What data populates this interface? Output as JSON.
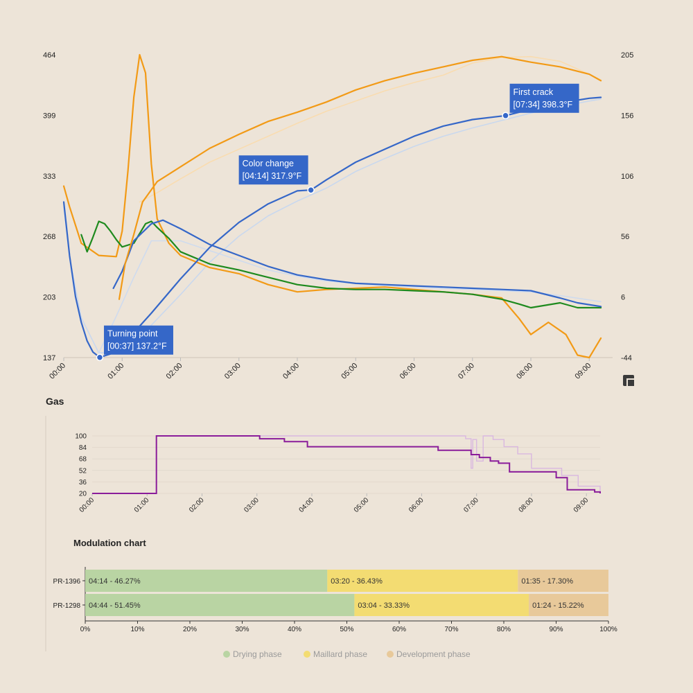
{
  "chart_data": [
    {
      "type": "line",
      "title": "",
      "x_ticks": [
        "00:00",
        "01:00",
        "02:00",
        "03:00",
        "04:00",
        "05:00",
        "06:00",
        "07:00",
        "08:00",
        "09:00"
      ],
      "xlim": [
        0,
        9.4
      ],
      "y_left_ticks": [
        "464",
        "399",
        "333",
        "268",
        "203",
        "137"
      ],
      "ylim_left": [
        137,
        464
      ],
      "y_right_ticks": [
        "205",
        "156",
        "106",
        "56",
        "6",
        "-44"
      ],
      "ylim_right": [
        -44,
        205
      ],
      "colors": {
        "bean_temp": "#3567c8",
        "bean_temp_ref": "#c9d8ee",
        "ror": "#3567c8",
        "ror_ref": "#cfdbee",
        "env_temp": "#f29a16",
        "env_temp_ref": "#f9dcb0",
        "ror_env": "#f29a16",
        "ror_env_ref": "#f7dcb6",
        "ror_green": "#1e8a1e",
        "ror_green_ref": "#cde6c8"
      },
      "series": [
        {
          "key": "bean_temp",
          "axis": "left",
          "x": [
            0,
            0.1,
            0.2,
            0.3,
            0.4,
            0.5,
            0.617,
            0.8,
            1.0,
            1.5,
            2.0,
            2.5,
            3.0,
            3.5,
            4.0,
            4.233,
            4.5,
            5.0,
            5.5,
            6.0,
            6.5,
            7.0,
            7.567,
            8.0,
            8.5,
            9.0,
            9.2
          ],
          "y": [
            305,
            247,
            203,
            175,
            155,
            143,
            137.2,
            141,
            150,
            185,
            222,
            256,
            283,
            303,
            317,
            317.9,
            329,
            348,
            362,
            376,
            387,
            394,
            398.3,
            405,
            412,
            417,
            418
          ]
        },
        {
          "key": "bean_temp_ref",
          "axis": "left",
          "x": [
            0,
            0.1,
            0.3,
            0.6,
            1.0,
            1.5,
            2.0,
            2.5,
            3.0,
            3.5,
            4.0,
            4.5,
            5.0,
            5.5,
            6.0,
            6.5,
            7.0,
            7.5,
            8.0,
            8.5,
            9.0,
            9.2
          ],
          "y": [
            300,
            245,
            180,
            142,
            144,
            172,
            205,
            240,
            268,
            290,
            306,
            320,
            338,
            352,
            365,
            376,
            385,
            393,
            401,
            408,
            414,
            416
          ]
        },
        {
          "key": "env_temp",
          "axis": "left",
          "x": [
            0.95,
            1.05,
            1.2,
            1.35,
            1.6,
            2.0,
            2.5,
            3.0,
            3.5,
            4.0,
            4.5,
            5.0,
            5.5,
            6.0,
            6.5,
            7.0,
            7.5,
            8.0,
            8.5,
            9.0,
            9.2
          ],
          "y": [
            200,
            238,
            270,
            305,
            327,
            343,
            363,
            378,
            392,
            402,
            413,
            426,
            436,
            444,
            451,
            458,
            462,
            456,
            451,
            443,
            436
          ]
        },
        {
          "key": "env_temp_ref",
          "axis": "left",
          "x": [
            1.3,
            1.6,
            2.0,
            2.5,
            3.0,
            3.5,
            4.0,
            4.5,
            5.0,
            5.5,
            6.0,
            6.5,
            7.0,
            7.5,
            8.0,
            8.5,
            9.0,
            9.2
          ],
          "y": [
            305,
            315,
            330,
            348,
            362,
            376,
            390,
            403,
            414,
            425,
            434,
            442,
            455,
            461,
            462,
            457,
            443,
            437
          ]
        },
        {
          "key": "ror",
          "axis": "right",
          "x": [
            0.85,
            1.0,
            1.2,
            1.5,
            1.7,
            2.0,
            2.5,
            3.0,
            3.5,
            4.0,
            4.5,
            5.0,
            5.5,
            6.0,
            6.5,
            7.0,
            7.5,
            8.0,
            8.5,
            8.8,
            9.2
          ],
          "y": [
            13,
            27,
            52,
            66,
            69,
            62,
            49,
            40,
            31,
            24,
            20,
            17,
            16,
            15,
            14,
            13,
            12,
            11,
            5,
            1,
            -2
          ]
        },
        {
          "key": "ror_ref",
          "axis": "right",
          "x": [
            0.6,
            0.9,
            1.2,
            1.5,
            2.0,
            2.5,
            3.0,
            3.5,
            4.0,
            4.5,
            5.0,
            5.5,
            6.0,
            6.5,
            7.0,
            7.5,
            8.0,
            8.5,
            9.2
          ],
          "y": [
            -40,
            -10,
            22,
            52,
            52,
            44,
            36,
            28,
            23,
            19,
            17,
            15,
            14,
            13,
            12,
            11,
            10,
            7,
            2
          ]
        },
        {
          "key": "ror_env",
          "axis": "right",
          "x": [
            0,
            0.1,
            0.3,
            0.6,
            0.9,
            1.0,
            1.1,
            1.2,
            1.3,
            1.4,
            1.5,
            1.6,
            1.8,
            2.0,
            2.5,
            3.0,
            3.5,
            4.0,
            4.5,
            5.0,
            5.5,
            6.0,
            6.5,
            7.0,
            7.5,
            7.8,
            8.0,
            8.3,
            8.6,
            8.8,
            9.0,
            9.2
          ],
          "y": [
            97,
            80,
            50,
            40,
            39,
            60,
            110,
            170,
            205,
            190,
            115,
            70,
            50,
            40,
            30,
            25,
            16,
            10,
            12,
            13,
            14,
            12,
            10,
            8,
            5,
            -12,
            -25,
            -15,
            -25,
            -42,
            -44,
            -28
          ]
        },
        {
          "key": "ror_green",
          "axis": "right",
          "x": [
            0.3,
            0.4,
            0.5,
            0.6,
            0.7,
            0.8,
            0.9,
            1.0,
            1.2,
            1.4,
            1.5,
            1.6,
            1.8,
            2.0,
            2.5,
            3.0,
            3.5,
            4.0,
            4.5,
            5.0,
            5.5,
            6.0,
            6.5,
            7.0,
            7.5,
            7.8,
            8.0,
            8.5,
            8.8,
            9.2
          ],
          "y": [
            57,
            43,
            55,
            68,
            66,
            60,
            53,
            47,
            50,
            66,
            68,
            63,
            54,
            43,
            33,
            28,
            22,
            16,
            13,
            12,
            12,
            11,
            10,
            8,
            4,
            0,
            -3,
            1,
            -3,
            -3
          ]
        }
      ],
      "annotations": [
        {
          "label": "Turning point",
          "value": "[00:37] 137.2°F",
          "x": 0.617,
          "y": 137.2,
          "box_side": "right"
        },
        {
          "label": "Color change",
          "value": "[04:14] 317.9°F",
          "x": 4.233,
          "y": 317.9,
          "box_side": "left"
        },
        {
          "label": "First crack",
          "value": "[07:34] 398.3°F",
          "x": 7.567,
          "y": 398.3,
          "box_side": "right"
        }
      ]
    },
    {
      "type": "line",
      "title": "Gas",
      "x_ticks": [
        "00:00",
        "01:00",
        "02:00",
        "03:00",
        "04:00",
        "05:00",
        "06:00",
        "07:00",
        "08:00",
        "09:00"
      ],
      "xlim": [
        0,
        9.25
      ],
      "y_ticks": [
        "100",
        "84",
        "68",
        "52",
        "36",
        "20"
      ],
      "ylim": [
        20,
        100
      ],
      "colors": {
        "gas": "#8a1c9a",
        "gas_ref": "#d9b7e0"
      },
      "series": [
        {
          "key": "gas",
          "step": true,
          "x": [
            0,
            1.17,
            3.05,
            3.5,
            3.92,
            6.3,
            6.9,
            7.05,
            7.25,
            7.4,
            7.6,
            8.45,
            8.65,
            9.15,
            9.25
          ],
          "y": [
            20,
            100,
            96,
            92,
            85,
            80,
            74,
            70,
            65,
            62,
            50,
            42,
            25,
            22,
            20
          ]
        },
        {
          "key": "gas_ref",
          "step": true,
          "x": [
            0,
            1.17,
            6.8,
            6.9,
            6.93,
            7.0,
            7.12,
            7.3,
            7.5,
            7.75,
            8.0,
            8.55,
            8.85,
            9.25
          ],
          "y": [
            20,
            100,
            96,
            55,
            95,
            65,
            100,
            95,
            85,
            75,
            55,
            45,
            30,
            22
          ]
        }
      ]
    },
    {
      "type": "bar",
      "title": "Modulation chart",
      "orientation": "horizontal",
      "stacked": true,
      "categories": [
        "PR-1396",
        "PR-1298"
      ],
      "x_ticks": [
        "0%",
        "10%",
        "20%",
        "30%",
        "40%",
        "50%",
        "60%",
        "70%",
        "80%",
        "90%",
        "100%"
      ],
      "xlim": [
        0,
        100
      ],
      "series": [
        {
          "name": "Drying phase",
          "color": "#b9d4a3",
          "values": [
            46.27,
            51.45
          ],
          "labels": [
            "04:14 - 46.27%",
            "04:44 - 51.45%"
          ]
        },
        {
          "name": "Maillard phase",
          "color": "#f3dc72",
          "values": [
            36.43,
            33.33
          ],
          "labels": [
            "03:20 - 36.43%",
            "03:04 - 33.33%"
          ]
        },
        {
          "name": "Development phase",
          "color": "#e8c99a",
          "values": [
            17.3,
            15.22
          ],
          "labels": [
            "01:35 - 17.30%",
            "01:24 - 15.22%"
          ]
        }
      ],
      "legend_position": "bottom"
    }
  ]
}
